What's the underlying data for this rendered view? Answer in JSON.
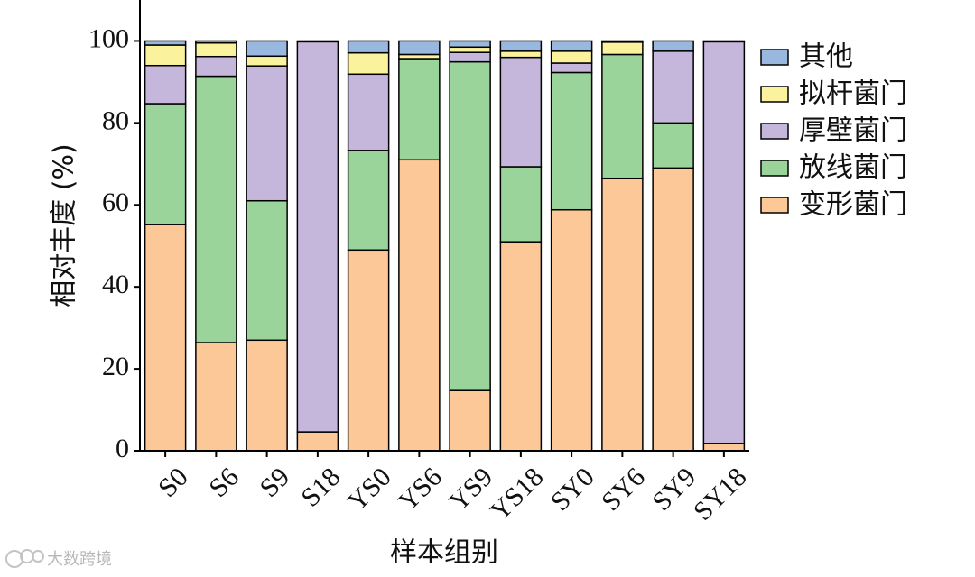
{
  "chart_data": {
    "type": "bar",
    "stacked": true,
    "xlabel": "样本组别",
    "ylabel": "相对丰度 (%)",
    "ylim": [
      0,
      110
    ],
    "yticks": [
      0,
      20,
      40,
      60,
      80,
      100
    ],
    "categories": [
      "S0",
      "S6",
      "S9",
      "S18",
      "YS0",
      "YS6",
      "YS9",
      "YS18",
      "SY0",
      "SY6",
      "SY9",
      "SY18"
    ],
    "legend_position": "right",
    "series": [
      {
        "name": "变形菌门",
        "color": "#fdc897",
        "values": [
          55.2,
          26.4,
          27.0,
          4.6,
          49.0,
          71.0,
          14.7,
          51.0,
          58.8,
          66.5,
          69.0,
          1.8
        ]
      },
      {
        "name": "放线菌门",
        "color": "#9bd49b",
        "values": [
          29.5,
          65.0,
          34.0,
          0.0,
          24.3,
          24.7,
          80.2,
          18.3,
          33.5,
          30.2,
          11.0,
          0.0
        ]
      },
      {
        "name": "厚壁菌门",
        "color": "#c5b6db",
        "values": [
          9.3,
          4.8,
          32.9,
          95.2,
          18.6,
          0.0,
          2.3,
          26.7,
          2.3,
          0.0,
          17.5,
          98.0
        ]
      },
      {
        "name": "拟杆菌门",
        "color": "#fbf29e",
        "values": [
          5.0,
          3.3,
          2.4,
          0.0,
          5.2,
          1.0,
          1.3,
          1.5,
          2.9,
          3.0,
          0.0,
          0.0
        ]
      },
      {
        "name": "其他",
        "color": "#99b8e0",
        "values": [
          1.0,
          0.5,
          3.7,
          0.2,
          2.9,
          3.3,
          1.5,
          2.5,
          2.5,
          0.3,
          2.5,
          0.2
        ]
      }
    ],
    "legend_order": [
      "其他",
      "拟杆菌门",
      "厚壁菌门",
      "放线菌门",
      "变形菌门"
    ]
  },
  "watermark": {
    "text": "大数跨境"
  }
}
